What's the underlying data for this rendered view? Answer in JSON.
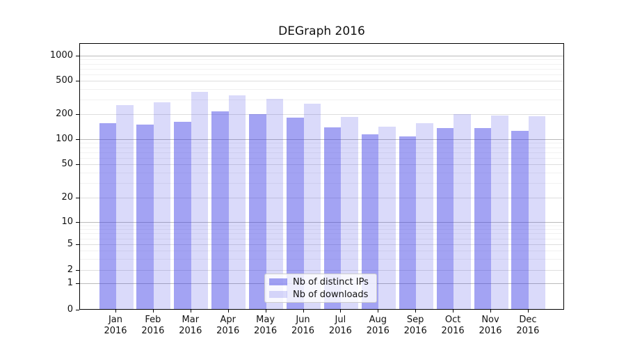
{
  "figure": {
    "title": "DEGraph 2016"
  },
  "chart_data": {
    "type": "bar",
    "title": "DEGraph 2016",
    "categories": [
      "Jan",
      "Feb",
      "Mar",
      "Apr",
      "May",
      "Jun",
      "Jul",
      "Aug",
      "Sep",
      "Oct",
      "Nov",
      "Dec"
    ],
    "year_label": "2016",
    "series": [
      {
        "name": "Nb of distinct IPs",
        "color": "rgba(60,60,230,0.47)",
        "values": [
          158,
          154,
          165,
          220,
          203,
          185,
          141,
          117,
          110,
          139,
          139,
          128
        ]
      },
      {
        "name": "Nb of downloads",
        "color": "rgba(60,60,230,0.19)",
        "values": [
          262,
          280,
          378,
          344,
          312,
          270,
          190,
          145,
          159,
          205,
          196,
          192
        ]
      }
    ],
    "xlabel": "",
    "ylabel": "",
    "y_axis": {
      "ticks": [
        1000,
        500,
        200,
        100,
        50,
        20,
        10,
        5,
        2,
        1,
        0
      ],
      "minor_ticks": [
        900,
        800,
        700,
        600,
        400,
        300,
        90,
        80,
        70,
        60,
        40,
        30,
        9,
        8,
        7,
        6,
        4,
        3
      ],
      "scale": "log-like (compressed linear region below 5, zero baseline shown)",
      "ylim": [
        0,
        1400
      ]
    },
    "grid": true,
    "legend_position": "lower center"
  }
}
